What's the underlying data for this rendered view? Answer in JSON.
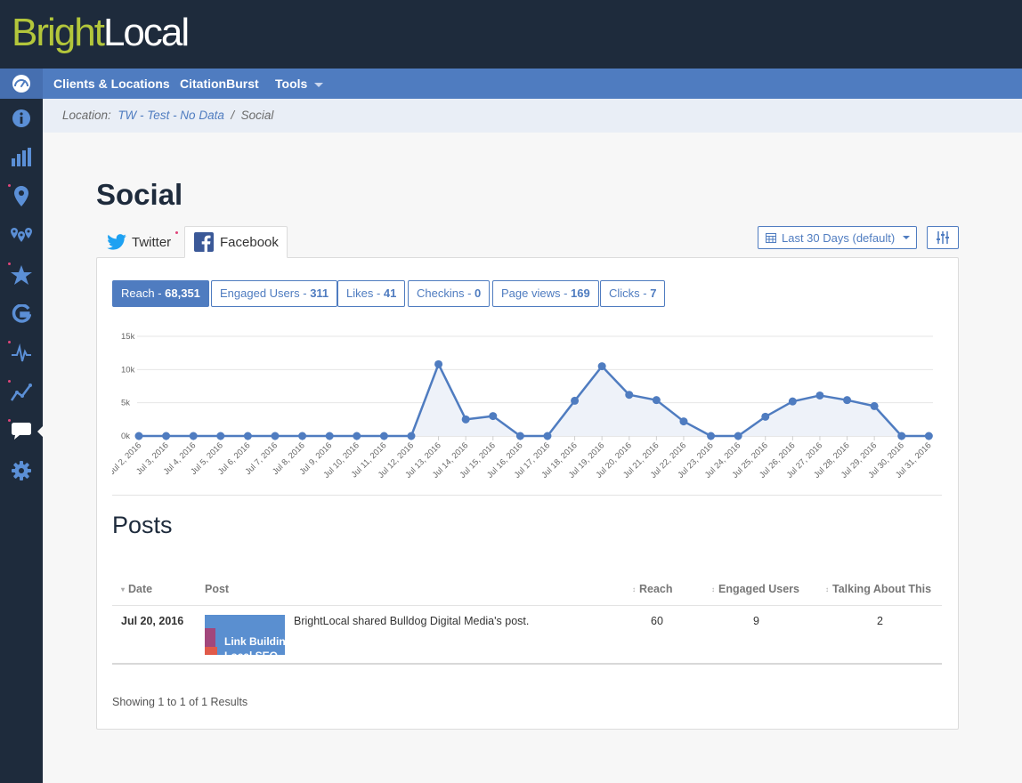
{
  "brand": {
    "part1": "Bright",
    "part2": "Local"
  },
  "nav": {
    "items": [
      "Clients & Locations",
      "CitationBurst",
      "Tools"
    ]
  },
  "sidebar": {
    "icons": [
      "info-icon",
      "bar-chart-icon",
      "map-pin-icon",
      "multi-pin-icon",
      "star-icon",
      "google-icon",
      "pulse-icon",
      "trend-line-icon",
      "speech-bubble-icon",
      "gear-icon"
    ]
  },
  "breadcrumb": {
    "prefix": "Location:",
    "location": "TW - Test - No Data",
    "separator": "/",
    "current": "Social"
  },
  "page": {
    "title": "Social"
  },
  "tabs": {
    "twitter": "Twitter",
    "facebook": "Facebook"
  },
  "date_range": {
    "label": "Last 30 Days (default)"
  },
  "metrics": [
    {
      "label": "Reach",
      "value": "68,351",
      "active": true
    },
    {
      "label": "Engaged Users",
      "value": "311",
      "active": false
    },
    {
      "label": "Likes",
      "value": "41",
      "active": false
    },
    {
      "label": "Checkins",
      "value": "0",
      "active": false
    },
    {
      "label": "Page views",
      "value": "169",
      "active": false
    },
    {
      "label": "Clicks",
      "value": "7",
      "active": false
    }
  ],
  "chart_data": {
    "type": "area",
    "title": "",
    "xlabel": "",
    "ylabel": "",
    "ylim": [
      0,
      15000
    ],
    "y_ticks": [
      "0k",
      "5k",
      "10k",
      "15k"
    ],
    "categories": [
      "Jul 2, 2016",
      "Jul 3, 2016",
      "Jul 4, 2016",
      "Jul 5, 2016",
      "Jul 6, 2016",
      "Jul 7, 2016",
      "Jul 8, 2016",
      "Jul 9, 2016",
      "Jul 10, 2016",
      "Jul 11, 2016",
      "Jul 12, 2016",
      "Jul 13, 2016",
      "Jul 14, 2016",
      "Jul 15, 2016",
      "Jul 16, 2016",
      "Jul 17, 2016",
      "Jul 18, 2016",
      "Jul 19, 2016",
      "Jul 20, 2016",
      "Jul 21, 2016",
      "Jul 22, 2016",
      "Jul 23, 2016",
      "Jul 24, 2016",
      "Jul 25, 2016",
      "Jul 26, 2016",
      "Jul 27, 2016",
      "Jul 28, 2016",
      "Jul 29, 2016",
      "Jul 30, 2016",
      "Jul 31, 2016"
    ],
    "series": [
      {
        "values": [
          0,
          0,
          0,
          0,
          0,
          0,
          0,
          0,
          0,
          0,
          0,
          10800,
          2500,
          3000,
          0,
          0,
          5300,
          10500,
          6200,
          5400,
          2200,
          0,
          0,
          2900,
          5200,
          6100,
          5400,
          4500,
          0,
          0
        ],
        "color": "#4f7cc0"
      }
    ],
    "grid": true,
    "legend": "none"
  },
  "posts": {
    "title": "Posts",
    "headers": {
      "date": "Date",
      "post": "Post",
      "reach": "Reach",
      "engaged": "Engaged Users",
      "talking": "Talking About This"
    },
    "rows": [
      {
        "date": "Jul 20, 2016",
        "thumb_text": "Link Building for Local SEO",
        "text": "BrightLocal shared Bulldog Digital Media's post.",
        "reach": "60",
        "engaged": "9",
        "talking": "2"
      }
    ],
    "results": "Showing 1 to 1 of 1 Results"
  },
  "colors": {
    "brand_green": "#b3c63b",
    "nav_blue": "#4f7cc0",
    "dark": "#1e2b3c",
    "twitter": "#1da1f2",
    "facebook": "#3b5998"
  }
}
